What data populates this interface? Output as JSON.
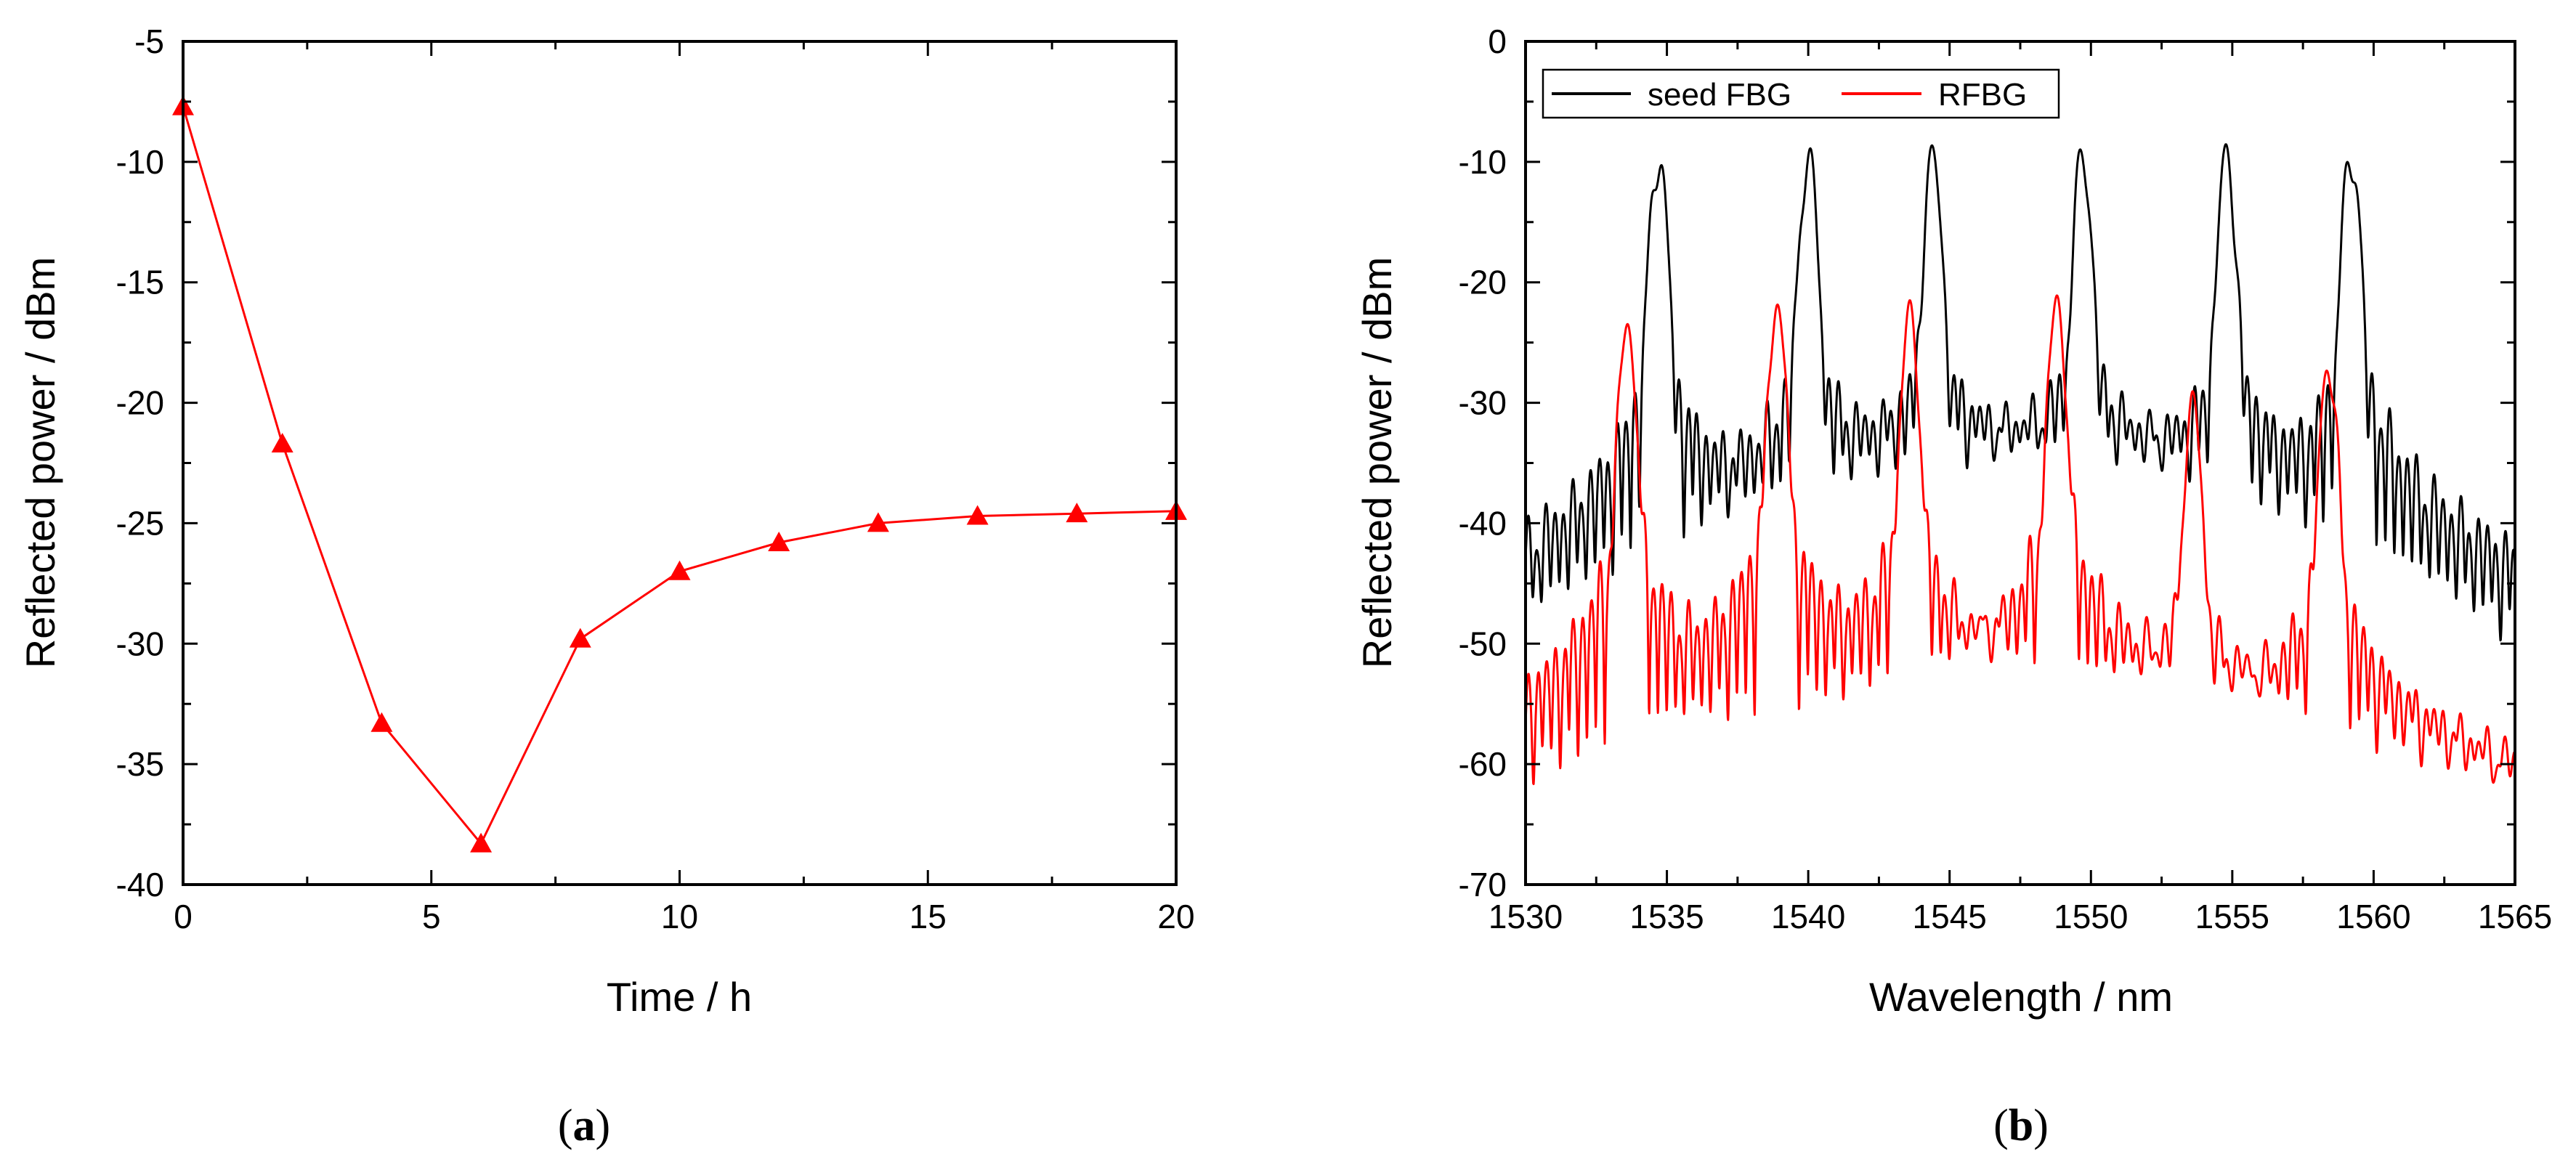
{
  "chart_data": [
    {
      "type": "line",
      "panel_label": "(a)",
      "panel_letter": "a",
      "title": "",
      "xlabel": "Time / h",
      "ylabel": "Reflected power / dBm",
      "xlim": [
        0,
        20
      ],
      "ylim": [
        -40,
        -5
      ],
      "xticks": [
        0,
        5,
        10,
        15,
        20
      ],
      "yticks": [
        -40,
        -35,
        -30,
        -25,
        -20,
        -15,
        -10,
        -5
      ],
      "grid": false,
      "series": [
        {
          "name": "Reflected power",
          "color": "#ff0000",
          "marker": "triangle",
          "x": [
            0,
            2,
            4,
            6,
            8,
            10,
            12,
            14,
            16,
            18,
            20
          ],
          "y": [
            -7.7,
            -21.7,
            -33.3,
            -38.3,
            -29.8,
            -27.0,
            -25.8,
            -25.0,
            -24.7,
            -24.6,
            -24.5
          ]
        }
      ]
    },
    {
      "type": "line",
      "panel_label": "(b)",
      "panel_letter": "b",
      "title": "",
      "xlabel": "Wavelength / nm",
      "ylabel": "Reflected power / dBm",
      "xlim": [
        1530,
        1565
      ],
      "ylim": [
        -70,
        0
      ],
      "xticks": [
        1530,
        1535,
        1540,
        1545,
        1550,
        1555,
        1560,
        1565
      ],
      "yticks": [
        -70,
        -60,
        -50,
        -40,
        -30,
        -20,
        -10,
        0
      ],
      "grid": false,
      "legend_position": "top-left",
      "series": [
        {
          "name": "seed FBG",
          "color": "#000000",
          "floor_start": -46,
          "floor_mid": -32,
          "floor_end": -48,
          "peaks": [
            {
              "center": 1534.7,
              "level": -8.2
            },
            {
              "center": 1540.0,
              "level": -8.3
            },
            {
              "center": 1544.4,
              "level": -8.3
            },
            {
              "center": 1549.7,
              "level": -8.2
            },
            {
              "center": 1554.8,
              "level": -8.2
            },
            {
              "center": 1559.2,
              "level": -7.9
            }
          ]
        },
        {
          "name": "RFBG",
          "color": "#ff0000",
          "floor_start": -60,
          "floor_mid": -52,
          "floor_end": -61.5,
          "peaks": [
            {
              "center": 1533.6,
              "level": -22.3
            },
            {
              "center": 1538.9,
              "level": -20.6
            },
            {
              "center": 1543.6,
              "level": -21.5
            },
            {
              "center": 1548.8,
              "level": -20.5
            },
            {
              "center": 1553.6,
              "level": -29.0
            },
            {
              "center": 1558.4,
              "level": -25.5
            }
          ]
        }
      ]
    }
  ]
}
